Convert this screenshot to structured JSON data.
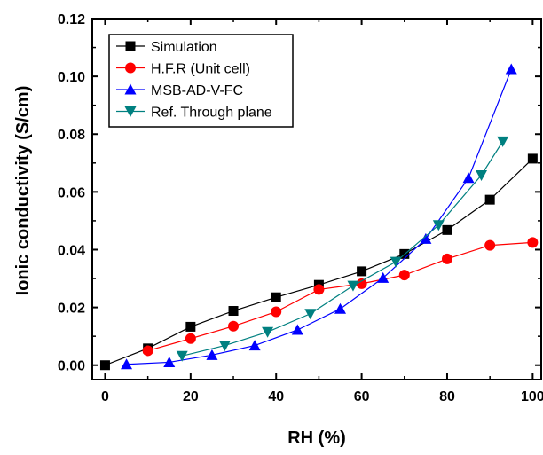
{
  "chart_data": {
    "type": "line",
    "xlabel": "RH (%)",
    "ylabel": "Ionic conductivity (S/cm)",
    "xlim": [
      -3,
      102
    ],
    "ylim": [
      -0.005,
      0.12
    ],
    "xticks": [
      "0",
      "20",
      "40",
      "60",
      "80",
      "100"
    ],
    "yticks": [
      "0.00",
      "0.02",
      "0.04",
      "0.06",
      "0.08",
      "0.10",
      "0.12"
    ],
    "grid": false,
    "legend_position": "top-left",
    "series": [
      {
        "name": "Simulation",
        "color": "#000000",
        "marker": "square",
        "x": [
          0,
          10,
          20,
          30,
          40,
          50,
          60,
          70,
          80,
          90,
          100
        ],
        "y": [
          0.0,
          0.0058,
          0.0133,
          0.0188,
          0.0235,
          0.0278,
          0.0325,
          0.0385,
          0.0468,
          0.0573,
          0.0715
        ]
      },
      {
        "name": "H.F.R (Unit cell)",
        "color": "#ff0000",
        "marker": "circle",
        "x": [
          10,
          20,
          30,
          40,
          50,
          60,
          70,
          80,
          90,
          100
        ],
        "y": [
          0.005,
          0.0092,
          0.0135,
          0.0185,
          0.0262,
          0.0282,
          0.0312,
          0.0368,
          0.0415,
          0.0425
        ]
      },
      {
        "name": "MSB-AD-V-FC",
        "color": "#0000ff",
        "marker": "triangle-up",
        "x": [
          5,
          15,
          25,
          35,
          45,
          55,
          65,
          75,
          85,
          95
        ],
        "y": [
          0.0003,
          0.001,
          0.0035,
          0.0068,
          0.0122,
          0.0195,
          0.0302,
          0.0437,
          0.0648,
          0.1025
        ]
      },
      {
        "name": "Ref. Through plane",
        "color": "#008080",
        "marker": "triangle-down",
        "x": [
          18,
          28,
          38,
          48,
          58,
          68,
          78,
          88,
          93
        ],
        "y": [
          0.0032,
          0.0068,
          0.0115,
          0.0178,
          0.0275,
          0.0358,
          0.0485,
          0.0658,
          0.0775
        ]
      }
    ]
  }
}
